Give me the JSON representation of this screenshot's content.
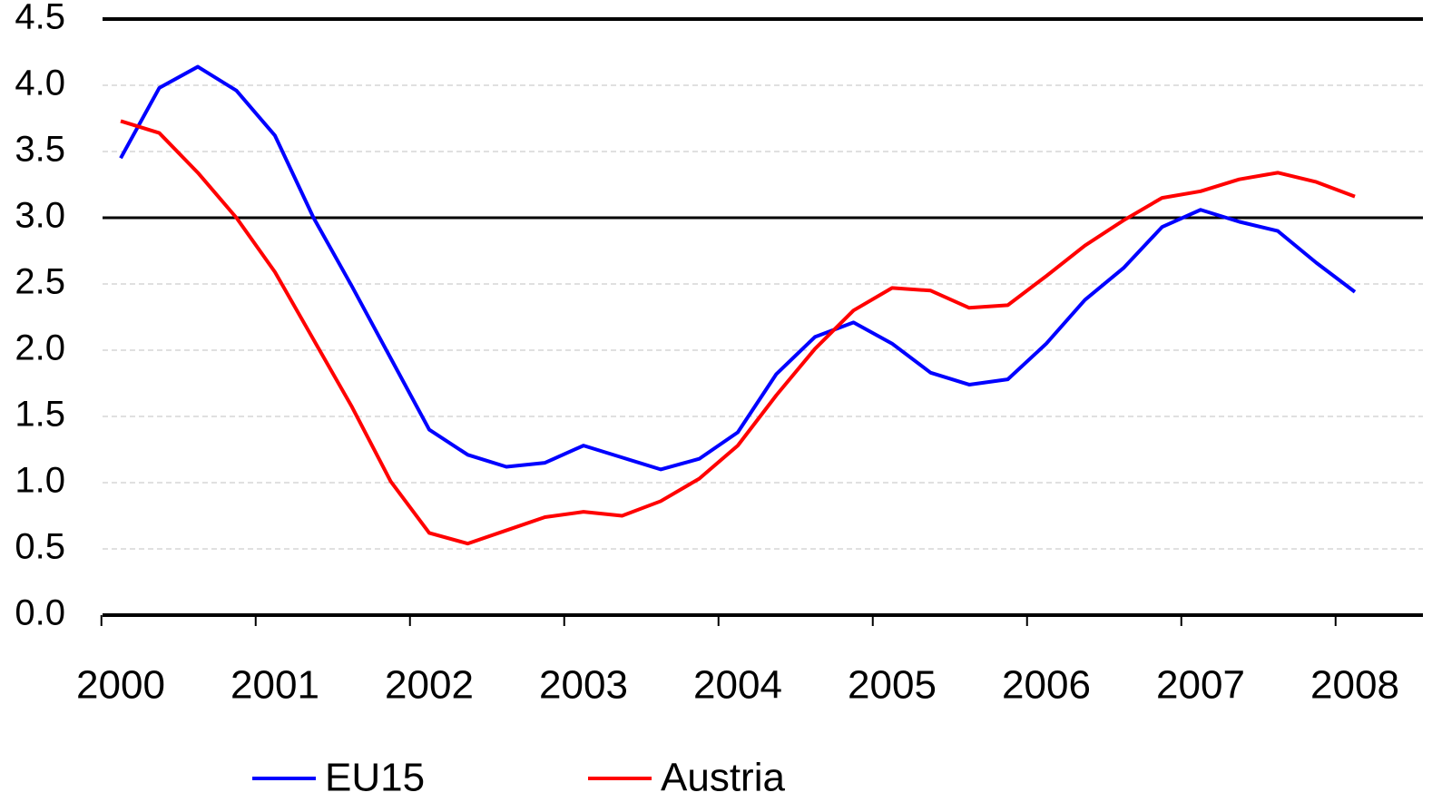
{
  "chart_data": {
    "type": "line",
    "categories": [
      "2000",
      null,
      null,
      null,
      "2001",
      null,
      null,
      null,
      "2002",
      null,
      null,
      null,
      "2003",
      null,
      null,
      null,
      "2004",
      null,
      null,
      null,
      "2005",
      null,
      null,
      null,
      "2006",
      null,
      null,
      null,
      "2007",
      null,
      null,
      null,
      "2008"
    ],
    "series": [
      {
        "name": "EU15",
        "color": "#0000ff",
        "values": [
          3.45,
          3.98,
          4.14,
          3.96,
          3.62,
          3.0,
          2.48,
          1.94,
          1.4,
          1.21,
          1.12,
          1.15,
          1.28,
          1.19,
          1.1,
          1.18,
          1.38,
          1.82,
          2.1,
          2.21,
          2.05,
          1.83,
          1.74,
          1.78,
          2.05,
          2.38,
          2.62,
          2.93,
          3.06,
          2.97,
          2.9,
          2.66,
          2.44
        ]
      },
      {
        "name": "Austria",
        "color": "#ff0000",
        "values": [
          3.73,
          3.64,
          3.34,
          3.0,
          2.59,
          2.08,
          1.57,
          1.01,
          0.62,
          0.54,
          0.64,
          0.74,
          0.78,
          0.75,
          0.86,
          1.03,
          1.28,
          1.66,
          2.01,
          2.3,
          2.47,
          2.45,
          2.32,
          2.34,
          2.56,
          2.79,
          2.98,
          3.15,
          3.2,
          3.29,
          3.34,
          3.27,
          3.16
        ]
      }
    ],
    "ylim": [
      0,
      4.5
    ],
    "yticks": [
      {
        "value": 0,
        "label": "0.0"
      },
      0.5,
      {
        "value": 1,
        "label": "1.0"
      },
      1.5,
      {
        "value": 2,
        "label": "2.0"
      },
      2.5,
      {
        "value": 3,
        "label": "3.0"
      },
      3.5,
      {
        "value": 4,
        "label": "4.0"
      },
      4.5
    ],
    "hlines": [
      3
    ],
    "grid": true,
    "legend": "bottom"
  }
}
